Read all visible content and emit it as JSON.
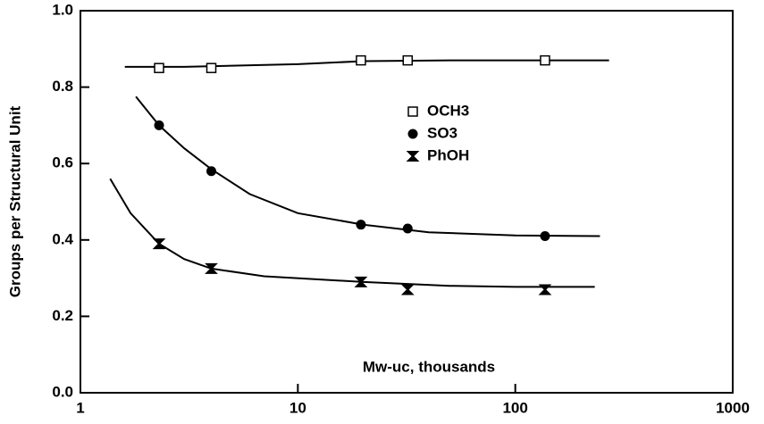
{
  "chart_data": {
    "type": "scatter",
    "xlabel": "Mw-uc,  thousands",
    "ylabel": "Groups per Structural Unit",
    "xscale": "log",
    "xlim": [
      1,
      1000
    ],
    "xticks": [
      1,
      10,
      100,
      1000
    ],
    "ylim": [
      0,
      1
    ],
    "yticks": [
      {
        "value": 0,
        "label": "0.0"
      },
      {
        "value": 0.2,
        "label": "0.2"
      },
      {
        "value": 0.4,
        "label": "0.4"
      },
      {
        "value": 0.6,
        "label": "0.6"
      },
      {
        "value": 0.8,
        "label": "0.8"
      },
      {
        "value": 1,
        "label": "1.0"
      }
    ],
    "legend": "inside",
    "series": [
      {
        "name": "OCH3",
        "marker": "open-square",
        "color": "#000000",
        "x": [
          2.3,
          4,
          19.5,
          32,
          137
        ],
        "values": [
          0.85,
          0.85,
          0.87,
          0.87,
          0.87
        ],
        "fit_x": [
          1.6,
          3,
          10,
          20,
          50,
          270
        ],
        "fit_values": [
          0.853,
          0.853,
          0.86,
          0.868,
          0.87,
          0.87
        ]
      },
      {
        "name": "SO3",
        "marker": "filled-circle",
        "color": "#000000",
        "x": [
          2.3,
          4,
          19.5,
          32,
          137
        ],
        "values": [
          0.7,
          0.58,
          0.44,
          0.43,
          0.41
        ],
        "fit_x": [
          1.8,
          2.3,
          3,
          4,
          6,
          10,
          20,
          40,
          100,
          245
        ],
        "fit_values": [
          0.775,
          0.7,
          0.64,
          0.585,
          0.52,
          0.47,
          0.44,
          0.42,
          0.412,
          0.41
        ]
      },
      {
        "name": "PhOH",
        "marker": "filled-bowtie",
        "color": "#000000",
        "x": [
          2.3,
          4,
          19.5,
          32,
          137
        ],
        "values": [
          0.39,
          0.325,
          0.29,
          0.27,
          0.27
        ],
        "fit_x": [
          1.37,
          1.7,
          2.3,
          3,
          4,
          7,
          20,
          50,
          100,
          232
        ],
        "fit_values": [
          0.56,
          0.47,
          0.39,
          0.35,
          0.325,
          0.305,
          0.29,
          0.28,
          0.277,
          0.277
        ]
      }
    ]
  }
}
